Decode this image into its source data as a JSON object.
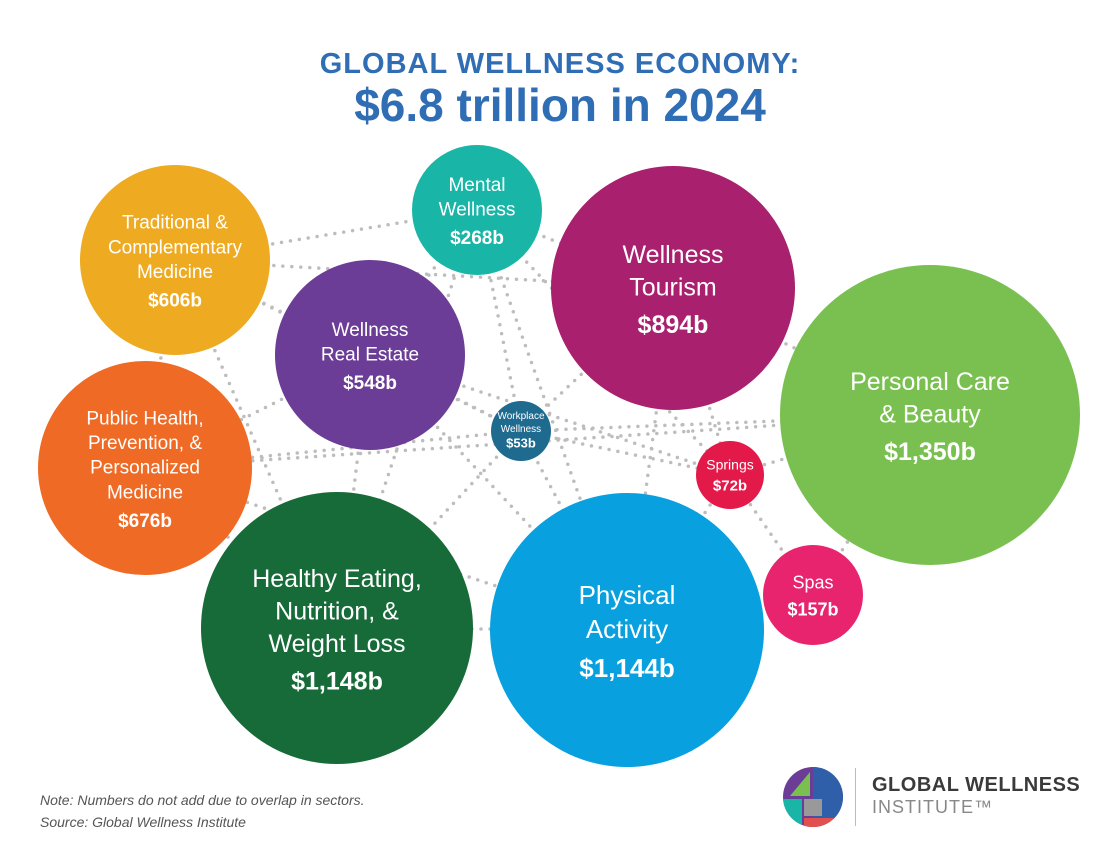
{
  "chart_data": {
    "type": "bubble",
    "title": "GLOBAL WELLNESS ECONOMY:",
    "subtitle": "$6.8 trillion in 2024",
    "unit": "billion USD",
    "bubbles": [
      {
        "lines": [
          "Traditional &",
          "Complementary",
          "Medicine"
        ],
        "label": "$606b",
        "value": 606,
        "color": "#eeab22"
      },
      {
        "lines": [
          "Mental",
          "Wellness"
        ],
        "label": "$268b",
        "value": 268,
        "color": "#19b6a8"
      },
      {
        "lines": [
          "Wellness",
          "Tourism"
        ],
        "label": "$894b",
        "value": 894,
        "color": "#a8206e"
      },
      {
        "lines": [
          "Wellness",
          "Real Estate"
        ],
        "label": "$548b",
        "value": 548,
        "color": "#6b3d96"
      },
      {
        "lines": [
          "Workplace",
          "Wellness"
        ],
        "label": "$53b",
        "value": 53,
        "color": "#1f6a8f"
      },
      {
        "lines": [
          "Personal Care",
          "& Beauty"
        ],
        "label": "$1,350b",
        "value": 1350,
        "color": "#79c050"
      },
      {
        "lines": [
          "Public Health,",
          "Prevention, &",
          "Personalized",
          "Medicine"
        ],
        "label": "$676b",
        "value": 676,
        "color": "#ef6a24"
      },
      {
        "lines": [
          "Springs"
        ],
        "label": "$72b",
        "value": 72,
        "color": "#e3194a"
      },
      {
        "lines": [
          "Healthy Eating,",
          "Nutrition, &",
          "Weight Loss"
        ],
        "label": "$1,148b",
        "value": 1148,
        "color": "#176b38"
      },
      {
        "lines": [
          "Physical",
          "Activity"
        ],
        "label": "$1,144b",
        "value": 1144,
        "color": "#08a0de"
      },
      {
        "lines": [
          "Spas"
        ],
        "label": "$157b",
        "value": 157,
        "color": "#e8246f"
      }
    ]
  },
  "notes": {
    "note": "Note: Numbers do not add due to overlap in sectors.",
    "source": "Source: Global Wellness Institute"
  },
  "logo": {
    "name": "GLOBAL WELLNESS",
    "sub": "INSTITUTE™"
  },
  "colors": {
    "title": "#2f6db5",
    "connector": "#bdbdbd"
  }
}
